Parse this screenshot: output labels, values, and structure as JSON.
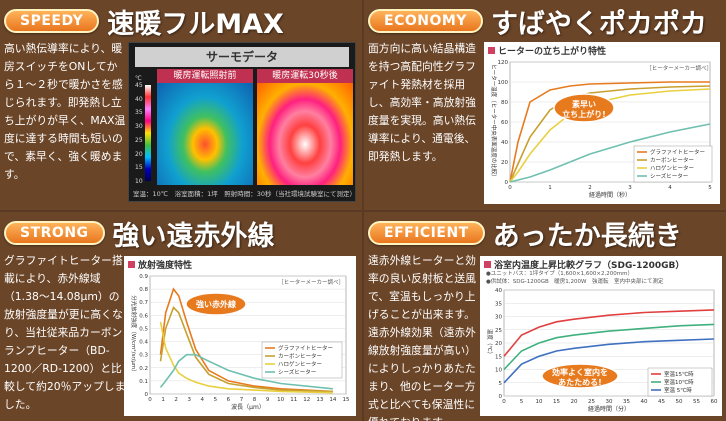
{
  "speedy": {
    "badge": "SPEEDY",
    "headline": "速暖フルMAX",
    "desc": "高い熱伝導率により、暖房スイッチをONしてから１～２秒で暖かさを感じられます。即発熱し立ち上がりが早く、MAX温度に達する時間も短いので、素早く、強く暖めます。",
    "thermo": {
      "title": "サーモデータ",
      "label_left": "暖房運転照射前",
      "label_right": "暖房運転30秒後",
      "unit": "℃",
      "ticks": [
        "45",
        "40",
        "35",
        "30",
        "25",
        "20",
        "15",
        "10"
      ],
      "note": "室温：10℃　浴室面積：1坪　照射時間：30秒（当社環境試験室にて測定）"
    }
  },
  "economy": {
    "badge": "ECONOMY",
    "headline": "すばやくポカポカ",
    "desc": "面方向に高い結晶構造を持つ高配向性グラファイト発熱材を採用し、高効率・高放射強度量を実現。高い熱伝導率により、通電後、即発熱します。",
    "chart_title": "ヒーターの立ち上がり特性",
    "source": "［ヒーターメーカー調べ］",
    "callout": "素早い\n立ち上がり!",
    "xlabel": "経過時間（秒）",
    "ylabel": "ヒーター温度（ヒーター中央表面温度の比較）"
  },
  "strong": {
    "badge": "STRONG",
    "headline": "強い遠赤外線",
    "desc": "グラファイトヒーター搭載により、赤外線域（1.38～14.08μm）の放射強度量が更に高くなり、当社従来品カーボンランプヒーター（BD-1200／RD-1200）と比較して約20％アップしました。",
    "chart_title": "放射強度特性",
    "source": "［ヒーターメーカー調べ］",
    "callout": "強い赤外線",
    "xlabel": "波長（μm）",
    "ylabel": "分光放射強度（W/cm²/sr/μm）"
  },
  "efficient": {
    "badge": "EFFICIENT",
    "headline": "あったか長続き",
    "desc": "遠赤外線ヒーターと効率の良い反射板と送風で、室温もしっかり上げることが出来ます。遠赤外線効果（遠赤外線放射強度量が高い）によりしっかりあたたまり、他のヒーター方式と比べても保温性に優れております。",
    "chart_title": "浴室内温度上昇比較グラフ（SDG-1200GB）",
    "notes": [
      "●ユニットバス：1坪タイプ（1,600×1,600×2,200mm）",
      "●供試体：SDG-1200GB　暖房1,200W　強運転　室内中央部にて測定"
    ],
    "callout": "効率よく室内を\nあたためる!",
    "xlabel": "経過時間（分）",
    "ylabel": "温度（℃）"
  },
  "chart_data": [
    {
      "type": "line",
      "title": "ヒーターの立ち上がり特性",
      "xlabel": "経過時間（秒）",
      "ylabel": "ヒーター温度（ヒーター中央表面温度の比較）",
      "xlim": [
        0,
        5
      ],
      "ylim": [
        0,
        120
      ],
      "x": [
        0,
        0.2,
        0.5,
        1,
        1.5,
        2,
        3,
        4,
        5
      ],
      "series": [
        {
          "name": "グラファイトヒーター",
          "color": "#e87a1e",
          "values": [
            0,
            40,
            80,
            92,
            96,
            98,
            99,
            100,
            100
          ]
        },
        {
          "name": "カーボンヒーター",
          "color": "#c8a030",
          "values": [
            0,
            18,
            45,
            72,
            84,
            89,
            93,
            95,
            96
          ]
        },
        {
          "name": "ハロゲンヒーター",
          "color": "#e8d040",
          "values": [
            0,
            10,
            28,
            52,
            68,
            78,
            87,
            91,
            93
          ]
        },
        {
          "name": "シーズヒーター",
          "color": "#6fc0b0",
          "values": [
            0,
            2,
            5,
            12,
            20,
            28,
            40,
            50,
            58
          ]
        }
      ],
      "xticks": [
        "0",
        "1",
        "2",
        "3",
        "4",
        "5"
      ],
      "yticks": [
        "0",
        "20",
        "40",
        "60",
        "80",
        "100",
        "120"
      ]
    },
    {
      "type": "line",
      "title": "放射強度特性",
      "xlabel": "波長（μm）",
      "ylabel": "分光放射強度（W/cm²/sr/μm）",
      "xlim": [
        0,
        15
      ],
      "ylim": [
        0,
        0.9
      ],
      "x": [
        0.8,
        1.2,
        1.8,
        2.2,
        2.8,
        3.5,
        4.5,
        6,
        8,
        10,
        14
      ],
      "series": [
        {
          "name": "グラファイトヒーター",
          "color": "#e87a1e",
          "values": [
            0.3,
            0.62,
            0.8,
            0.75,
            0.55,
            0.34,
            0.18,
            0.1,
            0.06,
            0.04,
            0.02
          ]
        },
        {
          "name": "カーボンヒーター",
          "color": "#c8a030",
          "values": [
            0.25,
            0.5,
            0.66,
            0.62,
            0.46,
            0.28,
            0.15,
            0.08,
            0.05,
            0.03,
            0.02
          ]
        },
        {
          "name": "ハロゲンヒーター",
          "color": "#e8d040",
          "values": [
            0.55,
            0.35,
            0.22,
            0.16,
            0.12,
            0.09,
            0.06,
            0.04,
            0.03,
            0.02,
            0.01
          ]
        },
        {
          "name": "シーズヒーター",
          "color": "#6fc0b0",
          "values": [
            0.05,
            0.1,
            0.18,
            0.25,
            0.3,
            0.3,
            0.25,
            0.18,
            0.12,
            0.08,
            0.04
          ]
        }
      ],
      "xticks": [
        "0",
        "1",
        "2",
        "3",
        "4",
        "5",
        "6",
        "7",
        "8",
        "9",
        "10",
        "11",
        "12",
        "13",
        "14",
        "15"
      ],
      "yticks": [
        "0",
        "0.1",
        "0.2",
        "0.3",
        "0.4",
        "0.5",
        "0.6",
        "0.7",
        "0.8",
        "0.9"
      ]
    },
    {
      "type": "line",
      "title": "浴室内温度上昇比較グラフ（SDG-1200GB）",
      "xlabel": "経過時間（分）",
      "ylabel": "温度（℃）",
      "xlim": [
        0,
        60
      ],
      "ylim": [
        0,
        40
      ],
      "x": [
        0,
        5,
        10,
        15,
        20,
        30,
        40,
        50,
        60
      ],
      "series": [
        {
          "name": "室温15℃時",
          "color": "#e04040",
          "values": [
            15,
            23,
            26,
            28,
            29,
            30.5,
            31.5,
            32,
            32.5
          ]
        },
        {
          "name": "室温10℃時",
          "color": "#40b080",
          "values": [
            10,
            17,
            20,
            22,
            23,
            24.5,
            25.5,
            26.5,
            27
          ]
        },
        {
          "name": "室温 5℃時",
          "color": "#4070c0",
          "values": [
            5,
            12,
            15,
            17,
            18,
            19.5,
            20.5,
            21,
            21.5
          ]
        }
      ],
      "xticks": [
        "0",
        "5",
        "10",
        "15",
        "20",
        "25",
        "30",
        "35",
        "40",
        "45",
        "50",
        "55",
        "60"
      ],
      "yticks": [
        "0",
        "5",
        "10",
        "15",
        "20",
        "25",
        "30",
        "35",
        "40"
      ]
    }
  ]
}
